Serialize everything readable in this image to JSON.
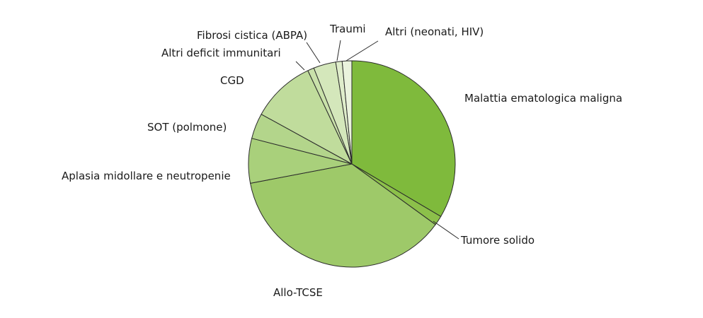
{
  "chart_data": {
    "type": "pie",
    "title": "",
    "start_angle_deg": 0,
    "direction": "clockwise",
    "slices": [
      {
        "label": "Malattia ematologica maligna",
        "value": 33.5,
        "color": "#7fba3c"
      },
      {
        "label": "Tumore solido",
        "value": 1.5,
        "color": "#8cc04a"
      },
      {
        "label": "Allo-TCSE",
        "value": 37.0,
        "color": "#9ec969"
      },
      {
        "label": "Aplasia midollare e neutropenie",
        "value": 7.0,
        "color": "#a9d07b"
      },
      {
        "label": "SOT (polmone)",
        "value": 4.0,
        "color": "#b3d58b"
      },
      {
        "label": "CGD",
        "value": 10.0,
        "color": "#c0dc9c"
      },
      {
        "label": "Altri deficit immunitari",
        "value": 1.0,
        "color": "#c9e1aa"
      },
      {
        "label": "Fibrosi cistica (ABPA)",
        "value": 3.5,
        "color": "#d4e7bb"
      },
      {
        "label": "Traumi",
        "value": 1.0,
        "color": "#dfedcb"
      },
      {
        "label": "Altri (neonati, HIV)",
        "value": 1.5,
        "color": "#eaf3dd"
      }
    ]
  }
}
